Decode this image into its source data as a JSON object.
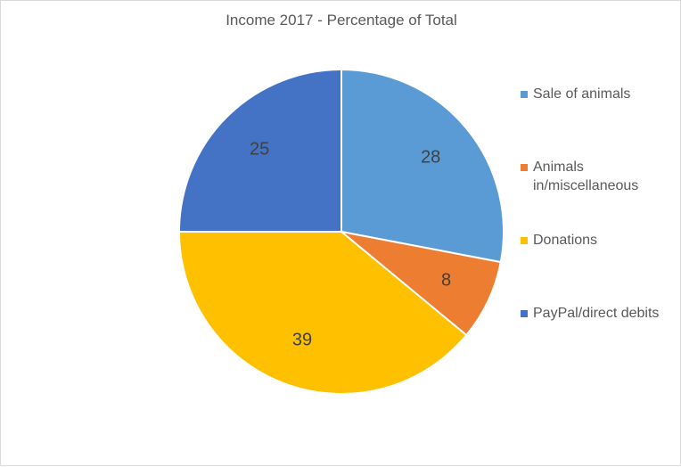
{
  "chart_data": {
    "type": "pie",
    "title": "Income 2017 - Percentage of Total",
    "categories": [
      "Sale of animals",
      "Animals in/miscellaneous",
      "Donations",
      "PayPal/direct debits"
    ],
    "values": [
      28,
      8,
      39,
      25
    ],
    "data_labels": [
      "28",
      "8",
      "39",
      "25"
    ],
    "colors": [
      "#5B9BD5",
      "#ED7D31",
      "#FFC000",
      "#4472C4"
    ],
    "legend_position": "right"
  }
}
